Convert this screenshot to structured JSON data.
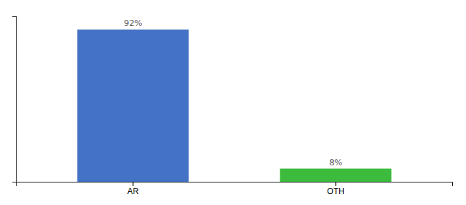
{
  "chart_data": {
    "type": "bar",
    "categories": [
      "AR",
      "OTH"
    ],
    "values": [
      92,
      8
    ],
    "value_labels": [
      "92%",
      "8%"
    ],
    "colors": [
      "#4472c4",
      "#3dbb3d"
    ],
    "ylim": [
      0,
      100
    ],
    "data_labels": true,
    "tick_labels": "x",
    "grid": false
  }
}
